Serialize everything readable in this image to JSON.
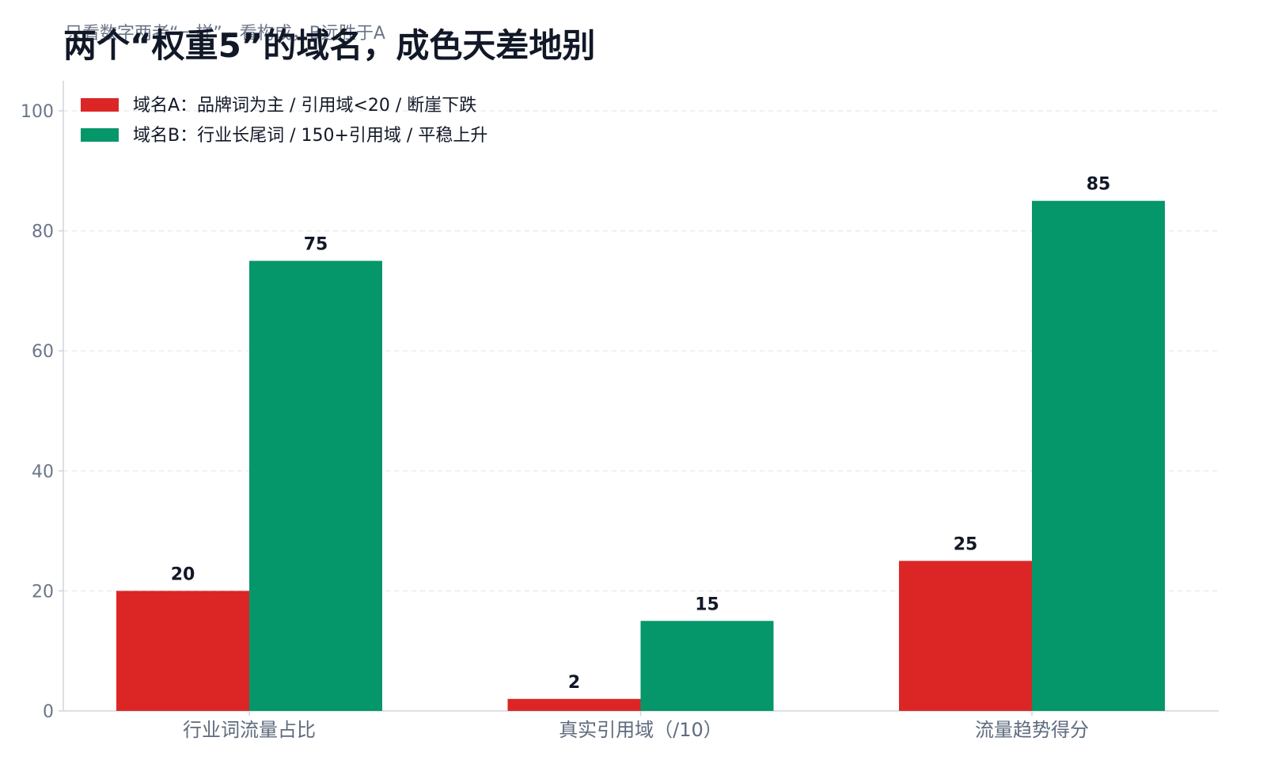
{
  "chart_data": {
    "type": "bar",
    "subtitle": "只看数字两者“一样”，看构成，B远胜于A",
    "title": "两个“权重5”的域名，成色天差地别",
    "categories": [
      "行业词流量占比",
      "真实引用域（/10）",
      "流量趋势得分"
    ],
    "series": [
      {
        "name": "域名A：品牌词为主 / 引用域<20 / 断崖下跌",
        "values": [
          20,
          2,
          25
        ],
        "color": "#dc2626"
      },
      {
        "name": "域名B：行业长尾词 / 150+引用域 / 平稳上升",
        "values": [
          75,
          15,
          85
        ],
        "color": "#059669"
      }
    ],
    "ylim": [
      0,
      100
    ],
    "yticks": [
      0,
      20,
      40,
      60,
      80,
      100
    ],
    "xlabel": "",
    "ylabel": "",
    "grid": true,
    "legend_position": "top-left",
    "data_labels": true
  }
}
